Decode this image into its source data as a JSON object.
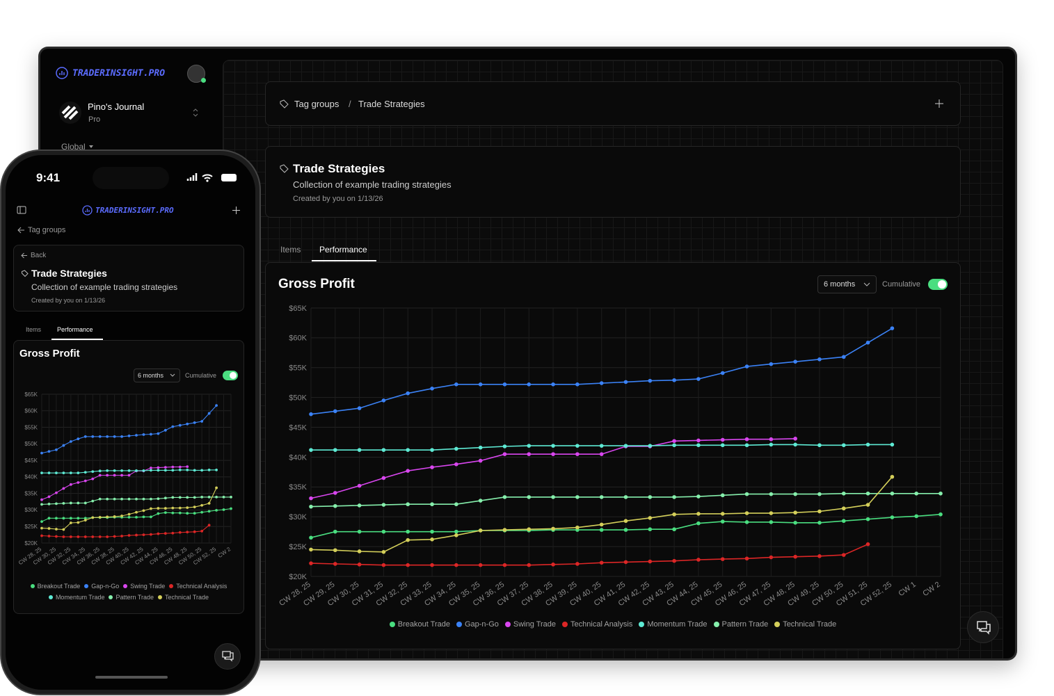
{
  "app": {
    "brand": "TRADERINSIGHT.PRO",
    "journal": "Pino's Journal",
    "plan": "Pro",
    "scope": "Global"
  },
  "breadcrumb": [
    "Tag groups",
    "/",
    "Trade Strategies"
  ],
  "header": {
    "title": "Trade Strategies",
    "description": "Collection of example trading strategies",
    "meta": "Created by you on 1/13/26"
  },
  "tabs": [
    "Items",
    "Performance"
  ],
  "controls": {
    "range": "6 months",
    "toggle": "Cumulative"
  },
  "phone": {
    "time": "9:41",
    "back": "Back"
  },
  "chart_data": {
    "type": "line",
    "title": "Gross Profit",
    "categories": [
      "CW 28, 25",
      "CW 29, 25",
      "CW 30, 25",
      "CW 31, 25",
      "CW 32, 25",
      "CW 33, 25",
      "CW 34, 25",
      "CW 35, 25",
      "CW 36, 25",
      "CW 37, 25",
      "CW 38, 25",
      "CW 39, 25",
      "CW 40, 25",
      "CW 41, 25",
      "CW 42, 25",
      "CW 43, 25",
      "CW 44, 25",
      "CW 45, 25",
      "CW 46, 25",
      "CW 47, 25",
      "CW 48, 25",
      "CW 49, 25",
      "CW 50, 25",
      "CW 51, 25",
      "CW 52, 25",
      "CW 1",
      "CW 2"
    ],
    "series": [
      {
        "name": "Breakout Trade",
        "color": "#4ade80",
        "values": [
          26500,
          27500,
          27500,
          27500,
          27500,
          27500,
          27500,
          27700,
          27700,
          27700,
          27800,
          27800,
          27800,
          27800,
          27900,
          27900,
          28900,
          29200,
          29100,
          29100,
          29000,
          29000,
          29300,
          29600,
          29900,
          30100,
          30400
        ]
      },
      {
        "name": "Gap-n-Go",
        "color": "#3b82f6",
        "values": [
          47200,
          47700,
          48200,
          49500,
          50700,
          51500,
          52200,
          52200,
          52200,
          52200,
          52200,
          52200,
          52400,
          52600,
          52800,
          52900,
          53100,
          54100,
          55200,
          55600,
          56000,
          56400,
          56800,
          59200,
          61600,
          null,
          null
        ]
      },
      {
        "name": "Swing Trade",
        "color": "#d946ef",
        "values": [
          33100,
          34000,
          35200,
          36500,
          37700,
          38300,
          38800,
          39400,
          40500,
          40500,
          40500,
          40500,
          40500,
          41800,
          41800,
          42700,
          42800,
          42900,
          43000,
          43000,
          43100,
          null,
          null,
          null,
          null,
          null,
          null
        ]
      },
      {
        "name": "Technical Analysis",
        "color": "#dc2626",
        "values": [
          22200,
          22100,
          22000,
          21900,
          21900,
          21900,
          21900,
          21900,
          21900,
          21900,
          22000,
          22100,
          22300,
          22400,
          22500,
          22600,
          22800,
          22900,
          23000,
          23200,
          23300,
          23400,
          23600,
          25400,
          null,
          null,
          null
        ]
      },
      {
        "name": "Momentum Trade",
        "color": "#5eead4",
        "values": [
          41200,
          41200,
          41200,
          41200,
          41200,
          41200,
          41400,
          41600,
          41800,
          41900,
          41900,
          41900,
          41900,
          41900,
          41900,
          42000,
          42000,
          42000,
          42000,
          42100,
          42100,
          42000,
          42000,
          42100,
          42100,
          null,
          null
        ]
      },
      {
        "name": "Pattern Trade",
        "color": "#86efac",
        "values": [
          31700,
          31800,
          31900,
          32000,
          32100,
          32100,
          32100,
          32700,
          33300,
          33300,
          33300,
          33300,
          33300,
          33300,
          33300,
          33300,
          33400,
          33600,
          33800,
          33800,
          33800,
          33800,
          33900,
          33900,
          33900,
          33900,
          33900
        ]
      },
      {
        "name": "Technical Trade",
        "color": "#d4cf5a",
        "values": [
          24500,
          24400,
          24200,
          24100,
          26100,
          26200,
          26900,
          27700,
          27800,
          27900,
          28000,
          28200,
          28700,
          29300,
          29800,
          30400,
          30500,
          30500,
          30600,
          30600,
          30700,
          30900,
          31400,
          32000,
          36700,
          null,
          null
        ]
      }
    ],
    "ylim": [
      20000,
      65000
    ],
    "yticks": [
      {
        "value": 20000,
        "label": "$20K"
      },
      {
        "value": 25000,
        "label": "$25K"
      },
      {
        "value": 30000,
        "label": "$30K"
      },
      {
        "value": 35000,
        "label": "$35K"
      },
      {
        "value": 40000,
        "label": "$40K"
      },
      {
        "value": 45000,
        "label": "$45K"
      },
      {
        "value": 50000,
        "label": "$50K"
      },
      {
        "value": 55000,
        "label": "$55K"
      },
      {
        "value": 60000,
        "label": "$60K"
      },
      {
        "value": 65000,
        "label": "$65K"
      }
    ],
    "grid": true
  }
}
